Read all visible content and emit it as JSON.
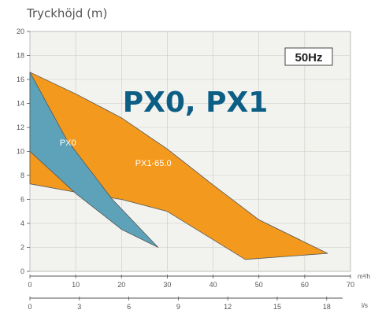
{
  "header": {
    "ylabel": "Tryckhöjd (m)"
  },
  "colors": {
    "px0": "#5da2b8",
    "px1": "#f39a1e",
    "title": "#0d5e85",
    "plot_bg": "#f2f2ee",
    "grid": "#c9c9c4"
  },
  "chart_data": {
    "type": "area",
    "title": "PX0, PX1",
    "badge": "50Hz",
    "ylabel": "Tryckhöjd (m)",
    "ylim": [
      0,
      20
    ],
    "yticks": [
      0,
      2,
      4,
      6,
      8,
      10,
      12,
      14,
      16,
      18,
      20
    ],
    "x_primary": {
      "unit": "m³/h",
      "xlim": [
        0,
        70
      ],
      "ticks": [
        0,
        10,
        20,
        30,
        40,
        50,
        60,
        70
      ]
    },
    "x_secondary": {
      "unit": "l/s",
      "ticks": [
        0,
        3,
        6,
        9,
        12,
        15,
        18
      ]
    },
    "series": [
      {
        "name": "PX1-65.0",
        "color": "#f39a1e",
        "points": [
          [
            0,
            16.6
          ],
          [
            10,
            14.8
          ],
          [
            20,
            12.8
          ],
          [
            30,
            10.2
          ],
          [
            40,
            7.2
          ],
          [
            50,
            4.3
          ],
          [
            65,
            1.5
          ],
          [
            47,
            1.0
          ],
          [
            30,
            5.0
          ],
          [
            20,
            6.0
          ],
          [
            10,
            6.6
          ],
          [
            0,
            7.3
          ]
        ]
      },
      {
        "name": "PX0",
        "color": "#5da2b8",
        "points": [
          [
            0,
            16.6
          ],
          [
            8,
            11.0
          ],
          [
            18,
            6.0
          ],
          [
            28,
            2.0
          ],
          [
            20,
            3.5
          ],
          [
            10,
            6.5
          ],
          [
            0,
            10.0
          ]
        ]
      }
    ],
    "labels": [
      {
        "text": "PX0",
        "x": 6.5,
        "y": 10.5,
        "color": "#ffffff"
      },
      {
        "text": "PX1-65.0",
        "x": 23,
        "y": 8.8,
        "color": "#ffffff"
      }
    ],
    "grid": true
  }
}
